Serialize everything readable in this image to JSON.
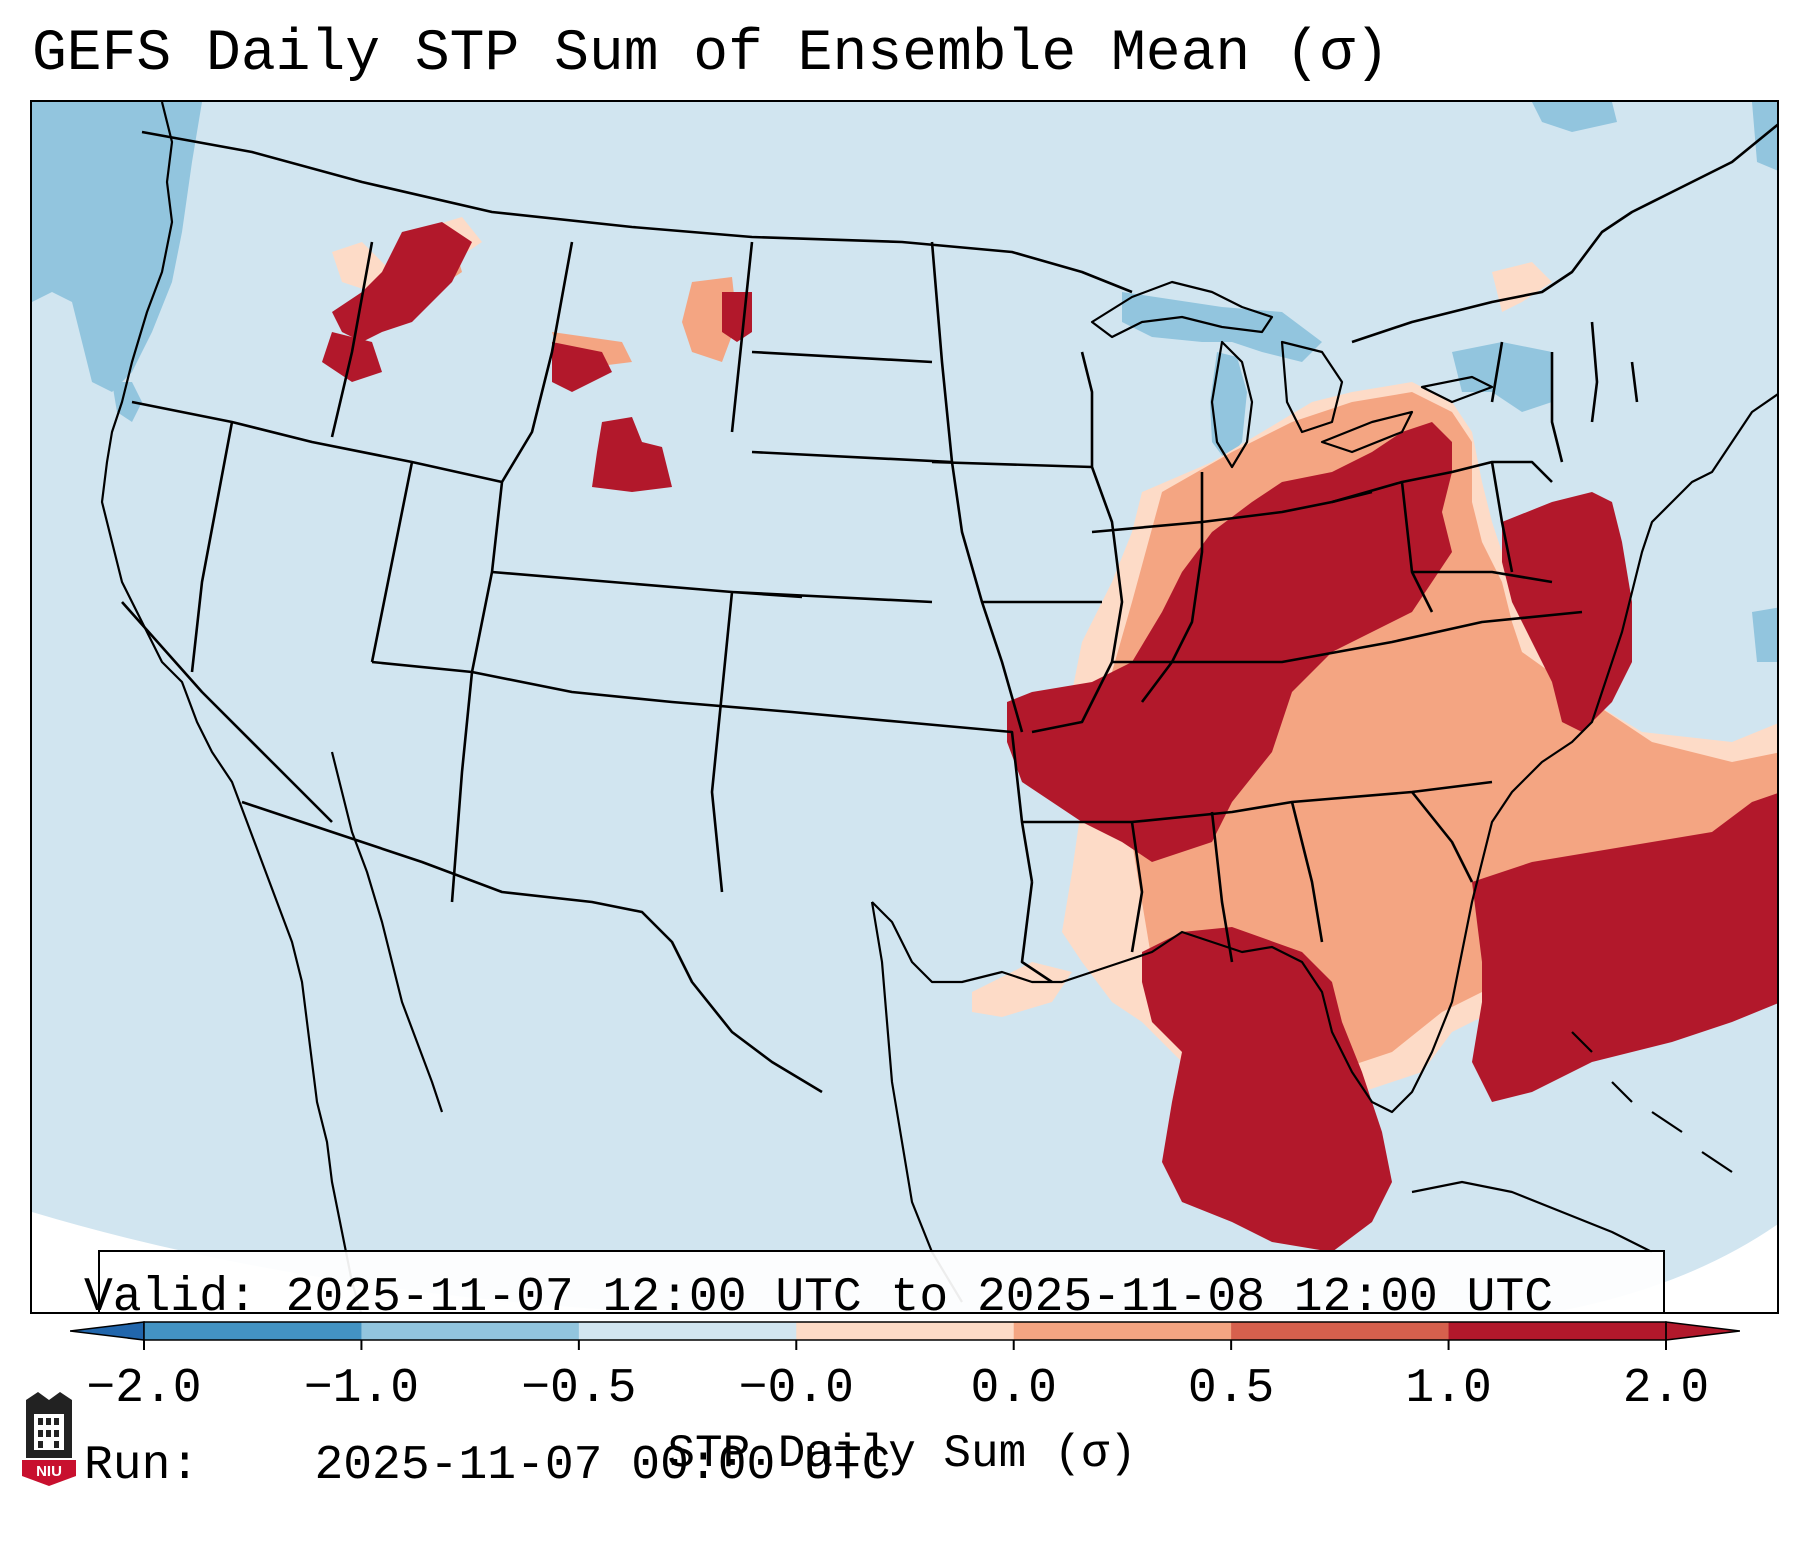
{
  "title": "GEFS Daily STP Sum of Ensemble Mean (σ)",
  "info": {
    "valid_label": "Valid:",
    "valid_value": "2025-11-07 12:00 UTC to 2025-11-08 12:00 UTC",
    "run_label": "Run:",
    "run_value": "2025-11-07 00:00 UTC"
  },
  "colorbar": {
    "label": "STP Daily Sum (σ)",
    "ticks": [
      "−2.0",
      "−1.0",
      "−0.5",
      "−0.0",
      "0.0",
      "0.5",
      "1.0",
      "2.0"
    ],
    "colors": [
      "#4393c3",
      "#92c5de",
      "#d1e5f0",
      "#f7f7f7",
      "#fddbc7",
      "#f4a582",
      "#d6604d",
      "#b2182b"
    ]
  },
  "logo": {
    "text": "NIU",
    "color": "#c8102e"
  },
  "map": {
    "background_color": "#d1e5f0",
    "outside_color": "#ffffff",
    "outline_color": "#000000",
    "anomaly_regions": [
      {
        "region": "Ohio and Tennessee Valleys",
        "category": "> 2.0"
      },
      {
        "region": "Lower Mississippi Valley / Arkansas",
        "category": "> 2.0"
      },
      {
        "region": "Northern Gulf of Mexico",
        "category": "> 2.0"
      },
      {
        "region": "Western Atlantic east of Florida",
        "category": "> 2.0"
      },
      {
        "region": "Mid-Atlantic / New Jersey coast",
        "category": "> 2.0"
      },
      {
        "region": "Idaho / Montana",
        "category": "1.0 to 2.0"
      },
      {
        "region": "Wyoming",
        "category": "1.0 to 2.0"
      },
      {
        "region": "Pacific Ocean off Washington",
        "category": "-1.0 to -0.5"
      },
      {
        "region": "Great Lakes",
        "category": "-1.0 to -0.5"
      }
    ]
  }
}
